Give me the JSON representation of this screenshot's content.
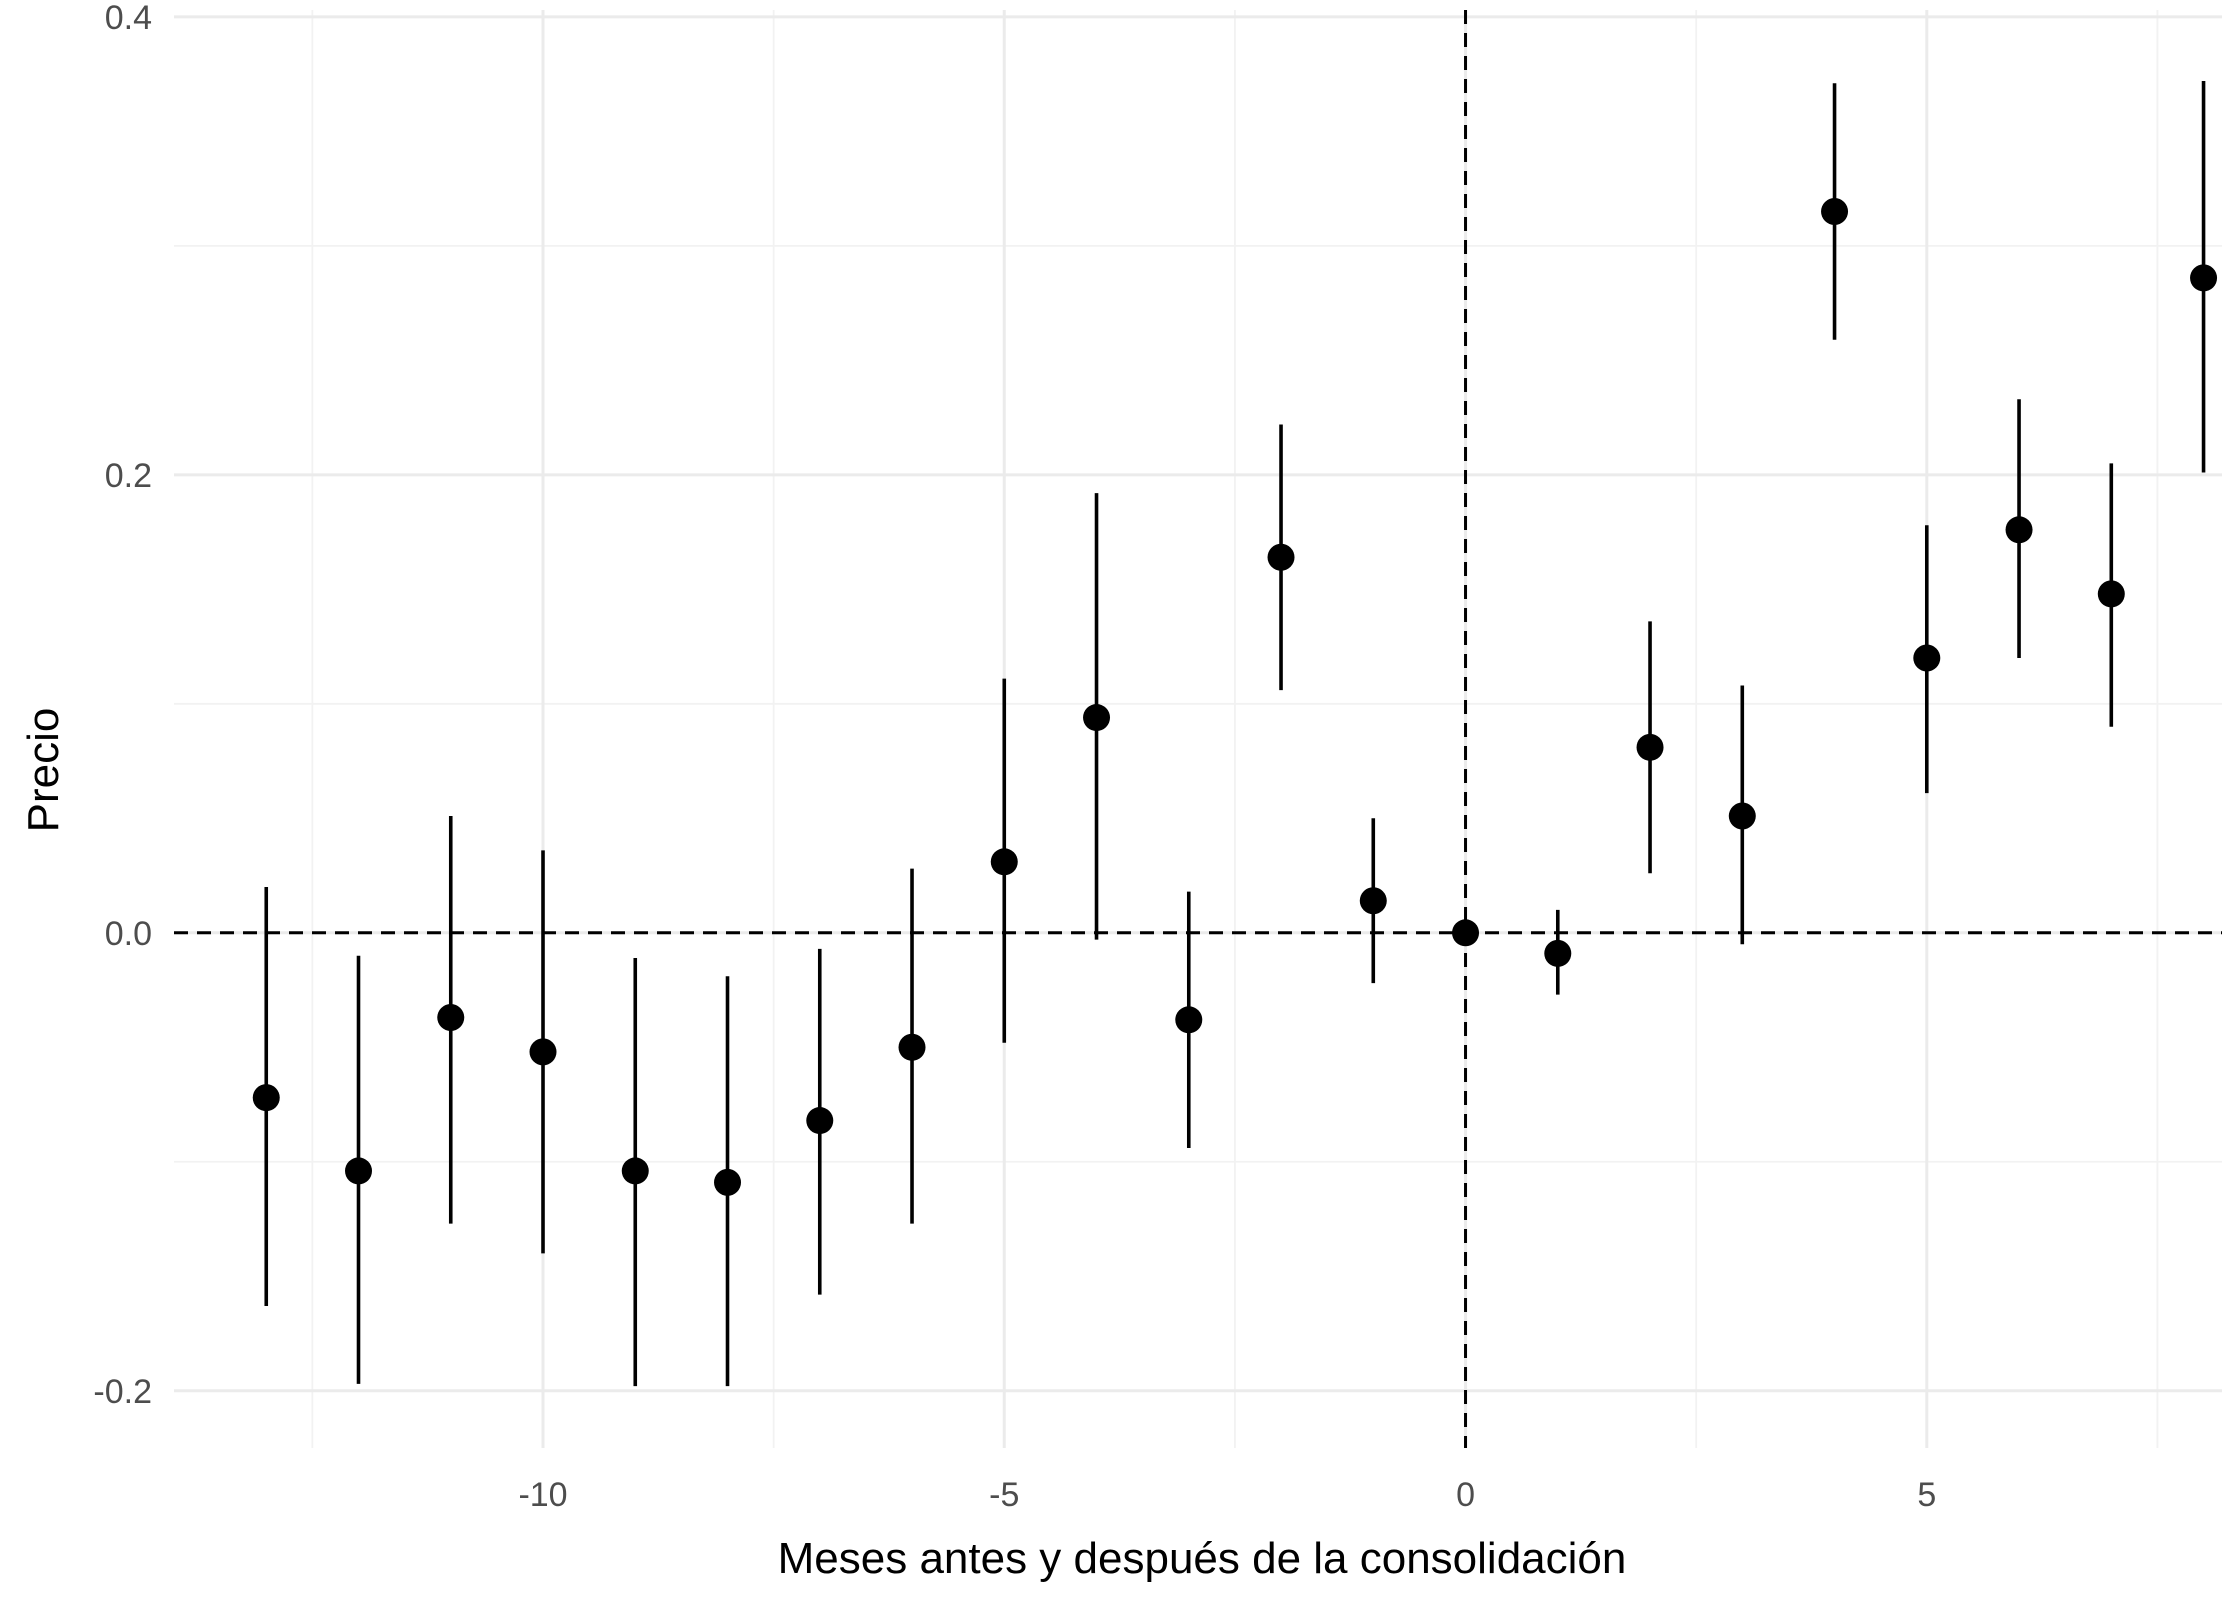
{
  "chart_data": {
    "type": "scatter",
    "subtype": "event-study coefficient plot with error bars",
    "title": "",
    "xlabel": "Meses antes y después de la consolidación",
    "ylabel": "Precio",
    "xlim": [
      -14.0,
      8.2
    ],
    "ylim": [
      -0.225,
      0.403
    ],
    "x_ticks": [
      -10,
      -5,
      0,
      5
    ],
    "x_tick_labels": [
      "-10",
      "-5",
      "0",
      "5"
    ],
    "y_ticks": [
      -0.2,
      0.0,
      0.2,
      0.4
    ],
    "y_tick_labels": [
      "-0.2",
      "0.0",
      "0.2",
      "0.4"
    ],
    "grid": true,
    "legend": "none",
    "reference_lines": [
      {
        "axis": "y",
        "value": 0,
        "style": "dashed"
      },
      {
        "axis": "x",
        "value": 0,
        "style": "dashed"
      }
    ],
    "points": [
      {
        "x": -13,
        "y": -0.072,
        "lower": -0.163,
        "upper": 0.02
      },
      {
        "x": -12,
        "y": -0.104,
        "lower": -0.197,
        "upper": -0.01
      },
      {
        "x": -11,
        "y": -0.037,
        "lower": -0.127,
        "upper": 0.051
      },
      {
        "x": -10,
        "y": -0.052,
        "lower": -0.14,
        "upper": 0.036
      },
      {
        "x": -9,
        "y": -0.104,
        "lower": -0.198,
        "upper": -0.011
      },
      {
        "x": -8,
        "y": -0.109,
        "lower": -0.198,
        "upper": -0.019
      },
      {
        "x": -7,
        "y": -0.082,
        "lower": -0.158,
        "upper": -0.007
      },
      {
        "x": -6,
        "y": -0.05,
        "lower": -0.127,
        "upper": 0.028
      },
      {
        "x": -5,
        "y": 0.031,
        "lower": -0.048,
        "upper": 0.111
      },
      {
        "x": -4,
        "y": 0.094,
        "lower": -0.003,
        "upper": 0.192
      },
      {
        "x": -3,
        "y": -0.038,
        "lower": -0.094,
        "upper": 0.018
      },
      {
        "x": -2,
        "y": 0.164,
        "lower": 0.106,
        "upper": 0.222
      },
      {
        "x": -1,
        "y": 0.014,
        "lower": -0.022,
        "upper": 0.05
      },
      {
        "x": 0,
        "y": 0.0,
        "lower": 0.0,
        "upper": 0.0
      },
      {
        "x": 1,
        "y": -0.009,
        "lower": -0.027,
        "upper": 0.01
      },
      {
        "x": 2,
        "y": 0.081,
        "lower": 0.026,
        "upper": 0.136
      },
      {
        "x": 3,
        "y": 0.051,
        "lower": -0.005,
        "upper": 0.108
      },
      {
        "x": 4,
        "y": 0.315,
        "lower": 0.259,
        "upper": 0.371
      },
      {
        "x": 5,
        "y": 0.12,
        "lower": 0.061,
        "upper": 0.178
      },
      {
        "x": 6,
        "y": 0.176,
        "lower": 0.12,
        "upper": 0.233
      },
      {
        "x": 7,
        "y": 0.148,
        "lower": 0.09,
        "upper": 0.205
      },
      {
        "x": 8,
        "y": 0.286,
        "lower": 0.201,
        "upper": 0.372
      }
    ]
  }
}
